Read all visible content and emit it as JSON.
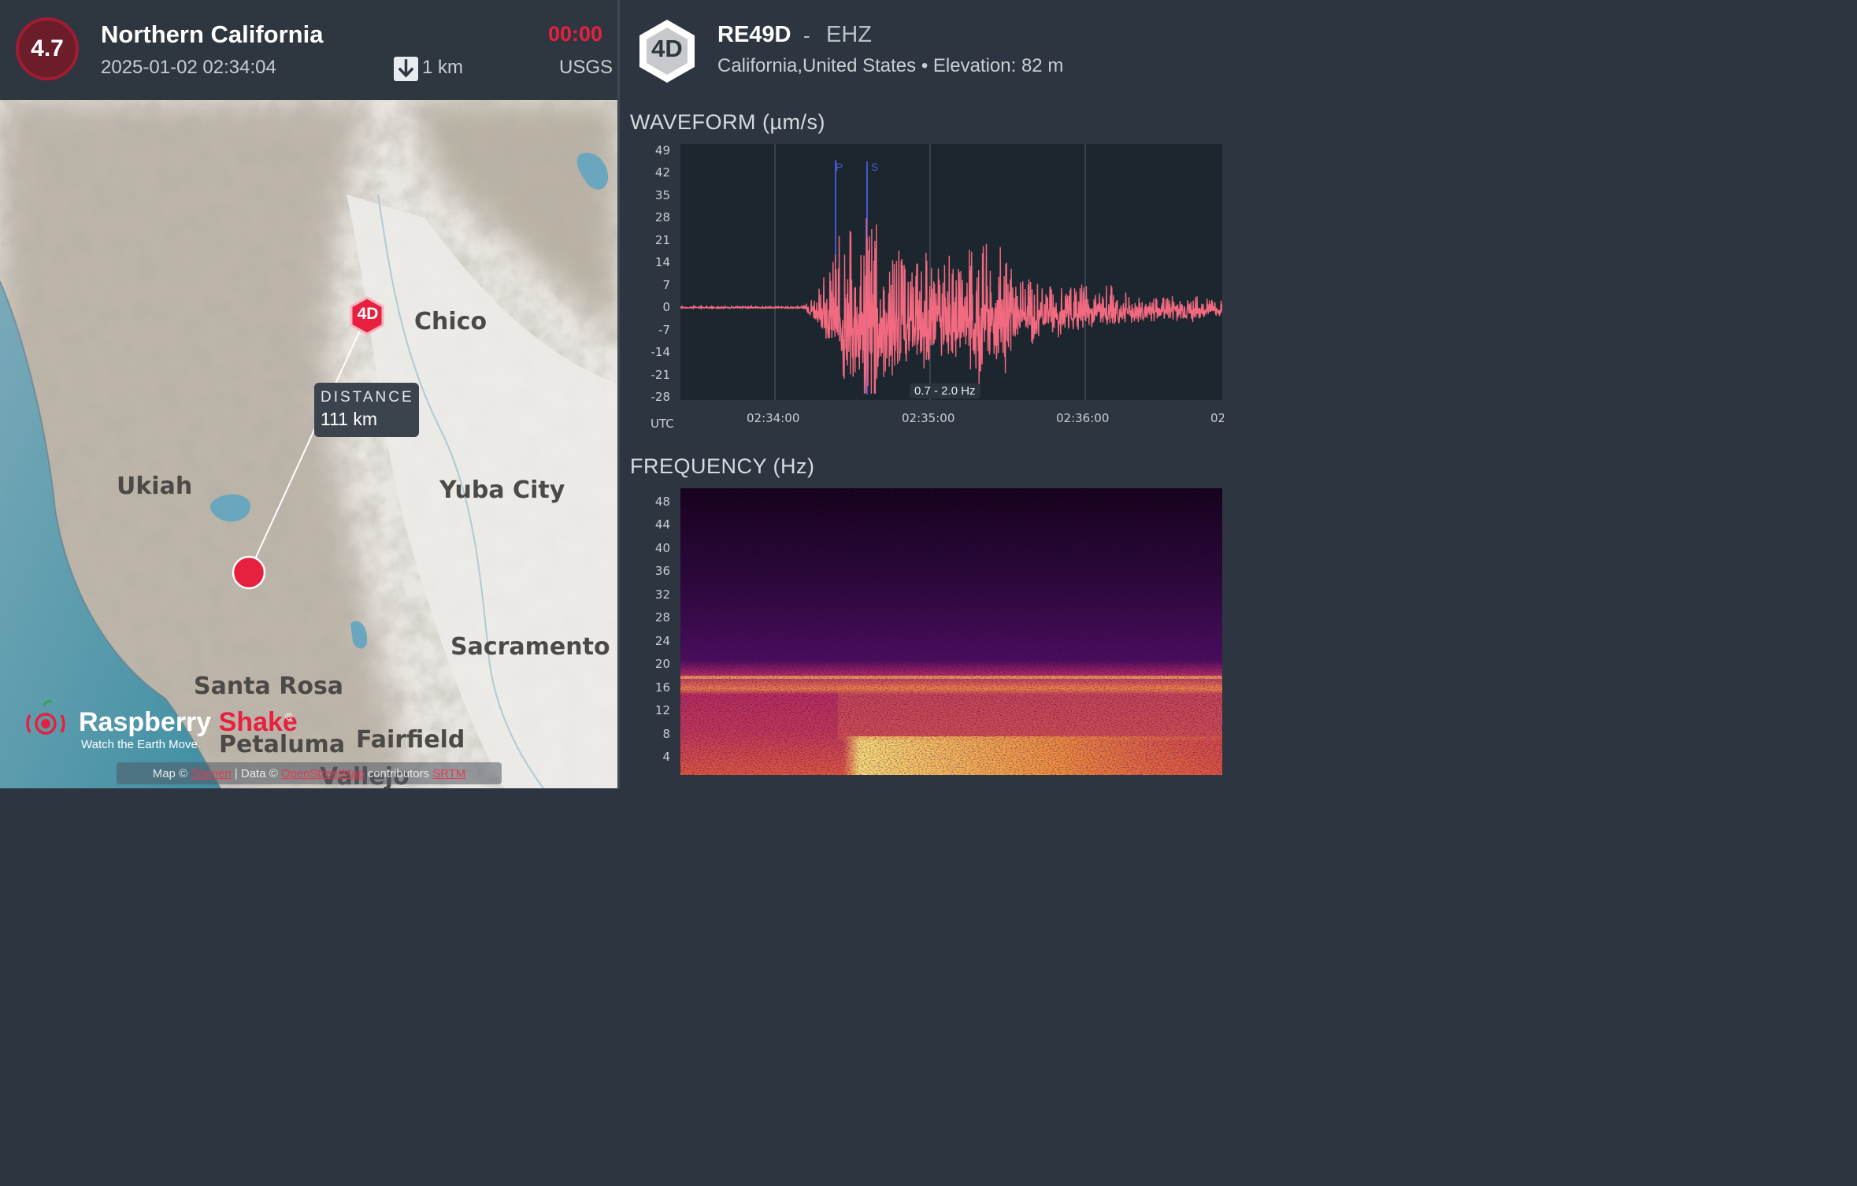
{
  "event": {
    "magnitude": "4.7",
    "region": "Northern California",
    "datetime": "2025-01-02 02:34:04",
    "depth": "1 km",
    "elapsed": "00:00",
    "source": "USGS"
  },
  "station": {
    "badge": "4D",
    "code": "RE49D",
    "separator": "-",
    "channel": "EHZ",
    "location": "California,United States",
    "bullet": "•",
    "elevation": "Elevation: 82 m"
  },
  "map": {
    "station_marker": "4D",
    "distance_label": "DISTANCE",
    "distance_value": "111 km",
    "cities": [
      "Chico",
      "Ukiah",
      "Yuba City",
      "Sacramento",
      "Santa Rosa",
      "Petaluma",
      "Fairfield",
      "Vallejo"
    ],
    "brand_name_part1": "Raspberry",
    "brand_name_part2": "Shake",
    "brand_registered": "®",
    "brand_tagline": "Watch the Earth Move",
    "attribution": {
      "map_prefix": "Map ©",
      "map_link": "Stamen",
      "data_prefix": "| Data ©",
      "data_link": "OpenStreetMap",
      "contributors": "contributors",
      "srtm_link": "SRTM"
    }
  },
  "waveform": {
    "title": "WAVEFORM (µm/s)",
    "y_ticks": [
      "49",
      "42",
      "35",
      "28",
      "21",
      "14",
      "7",
      "0",
      "-7",
      "-14",
      "-21",
      "-28"
    ],
    "x_axis_label": "UTC",
    "x_ticks": [
      "02:34:00",
      "02:35:00",
      "02:36:00",
      "02:"
    ],
    "p_label": "P",
    "s_label": "S",
    "filter_label": "0.7 - 2.0 Hz"
  },
  "frequency": {
    "title": "FREQUENCY (Hz)",
    "y_ticks": [
      "48",
      "44",
      "40",
      "36",
      "32",
      "28",
      "24",
      "20",
      "16",
      "12",
      "8",
      "4"
    ]
  },
  "colors": {
    "accent_red": "#e8203f",
    "waveform_trace": "#f26a80",
    "pick_line": "#4a56c9",
    "panel_bg": "#2d3640",
    "plot_bg": "#1c262f"
  },
  "chart_data": [
    {
      "type": "line",
      "title": "WAVEFORM (µm/s)",
      "ylabel": "µm/s",
      "xlabel": "UTC",
      "ylim": [
        -28,
        49
      ],
      "x_ticks": [
        "02:34:00",
        "02:35:00",
        "02:36:00"
      ],
      "series": [
        {
          "values": [
            0,
            0,
            0,
            0,
            0,
            0,
            0,
            0,
            0,
            0,
            6,
            -14,
            30,
            -27,
            49,
            -24,
            26,
            -16,
            28,
            -18,
            19,
            -13,
            33,
            -17,
            24,
            -10,
            14,
            -8,
            11,
            -7,
            9,
            -6,
            8,
            -5,
            6,
            -5,
            5,
            -4,
            5,
            -3,
            4
          ]
        }
      ],
      "annotations": [
        "P",
        "S",
        "0.7 - 2.0 Hz"
      ],
      "grid": true
    },
    {
      "type": "heatmap",
      "title": "FREQUENCY (Hz)",
      "ylabel": "Hz",
      "ylim": [
        0,
        50
      ]
    }
  ]
}
